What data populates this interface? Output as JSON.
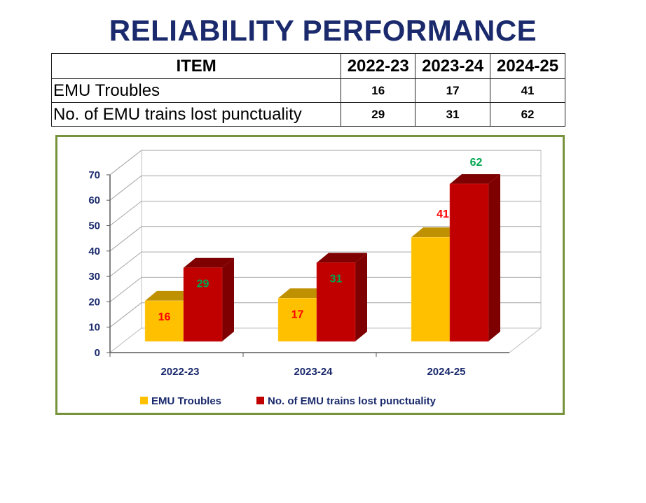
{
  "title": "RELIABILITY PERFORMANCE",
  "table": {
    "headers": [
      "ITEM",
      "2022-23",
      "2023-24",
      "2024-25"
    ],
    "rows": [
      {
        "label": "EMU Troubles",
        "values": [
          "16",
          "17",
          "41"
        ]
      },
      {
        "label": "No. of EMU trains lost punctuality",
        "values": [
          "29",
          "31",
          "62"
        ]
      }
    ]
  },
  "chart_data": {
    "type": "bar",
    "style": "3d-clustered-column",
    "categories": [
      "2022-23",
      "2023-24",
      "2024-25"
    ],
    "series": [
      {
        "name": "EMU Troubles",
        "values": [
          16,
          17,
          41
        ],
        "color": "#ffc000",
        "label_color": "#ff0000"
      },
      {
        "name": "No. of EMU trains lost punctuality",
        "values": [
          29,
          31,
          62
        ],
        "color": "#c00000",
        "label_color": "#00a650"
      }
    ],
    "yticks": [
      0,
      10,
      20,
      30,
      40,
      50,
      60,
      70
    ],
    "ylim": [
      0,
      70
    ],
    "grid": true,
    "legend": "bottom"
  },
  "colors": {
    "title": "#1a2a6c",
    "axis_text": "#1a2a6c",
    "frame": "#77933c"
  }
}
